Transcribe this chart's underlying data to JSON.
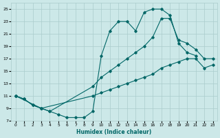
{
  "xlabel": "Humidex (Indice chaleur)",
  "background_color": "#cce8e8",
  "grid_color": "#aacccc",
  "line_color": "#006666",
  "xlim": [
    -0.5,
    23.5
  ],
  "ylim": [
    7,
    26
  ],
  "yticks": [
    7,
    9,
    11,
    13,
    15,
    17,
    19,
    21,
    23,
    25
  ],
  "xticks": [
    0,
    1,
    2,
    3,
    4,
    5,
    6,
    7,
    8,
    9,
    10,
    11,
    12,
    13,
    14,
    15,
    16,
    17,
    18,
    19,
    20,
    21,
    22,
    23
  ],
  "series1_x": [
    0,
    1,
    2,
    3,
    4,
    5,
    6,
    7,
    8,
    9,
    10,
    11,
    12,
    13,
    14,
    15,
    16,
    17,
    18,
    19,
    20,
    21
  ],
  "series1_y": [
    11,
    10.5,
    9.5,
    9,
    8.5,
    8,
    7.5,
    7.5,
    7.5,
    8.5,
    17.5,
    21.5,
    23,
    23,
    21.5,
    24.5,
    25,
    25,
    24,
    19.5,
    18,
    17.5
  ],
  "series2_x": [
    0,
    1,
    2,
    3,
    9,
    10,
    11,
    12,
    13,
    14,
    15,
    16,
    17,
    18,
    19,
    20,
    21,
    22,
    23
  ],
  "series2_y": [
    11,
    10.5,
    9.5,
    9,
    11,
    11.5,
    12,
    12.5,
    13,
    13.5,
    14,
    14.5,
    15.5,
    16,
    16.5,
    17,
    17,
    15.5,
    16
  ],
  "series3_x": [
    0,
    3,
    4,
    9,
    10,
    11,
    12,
    13,
    14,
    15,
    16,
    17,
    18,
    19,
    20,
    21,
    22,
    23
  ],
  "series3_y": [
    11,
    9,
    8.5,
    12.5,
    14,
    15,
    16,
    17,
    18,
    19,
    20.5,
    23.5,
    23.5,
    20,
    19.5,
    18.5,
    17,
    17
  ]
}
